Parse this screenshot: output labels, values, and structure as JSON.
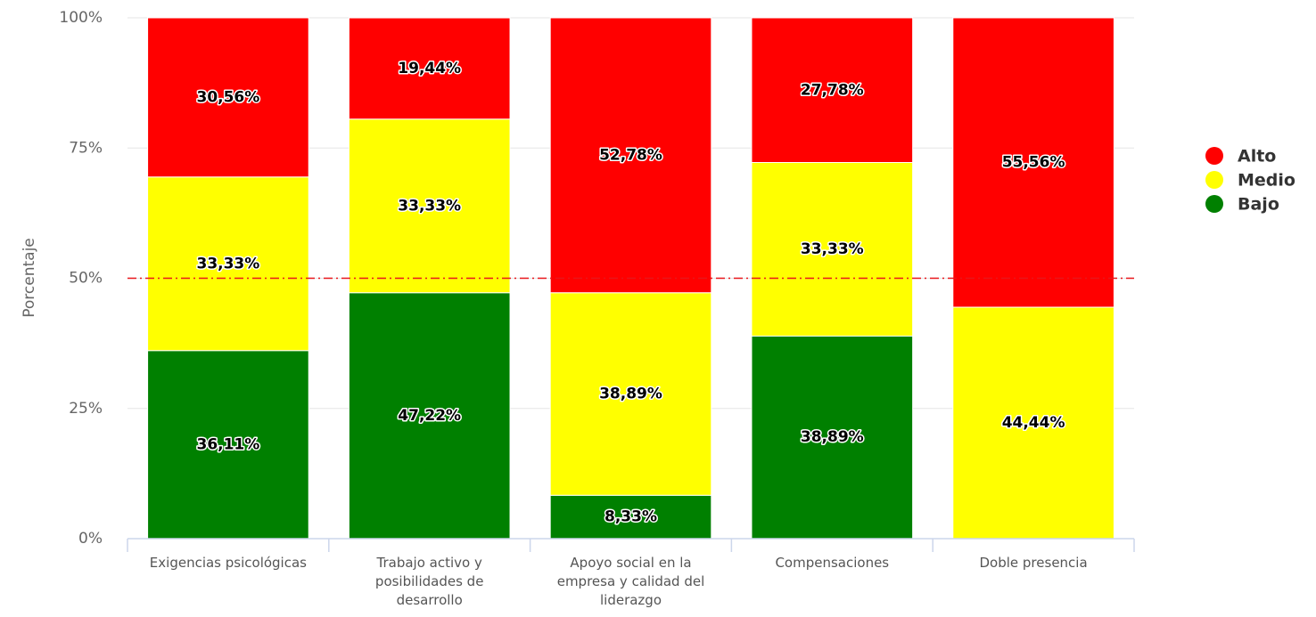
{
  "chart_data": {
    "type": "stacked_bar",
    "ylabel": "Porcentaje",
    "categories": [
      "Exigencias psicológicas",
      "Trabajo activo y posibilidades de desarrollo",
      "Apoyo social en la empresa y calidad del liderazgo",
      "Compensaciones",
      "Doble presencia"
    ],
    "series": [
      {
        "name": "Bajo",
        "color": "#008000",
        "values": [
          36.11,
          47.22,
          8.33,
          38.89,
          0
        ],
        "value_labels": [
          "36,11%",
          "47,22%",
          "8,33%",
          "38,89%",
          null
        ]
      },
      {
        "name": "Medio",
        "color": "#ffff00",
        "values": [
          33.33,
          33.33,
          38.89,
          33.33,
          44.44
        ],
        "value_labels": [
          "33,33%",
          "33,33%",
          "38,89%",
          "33,33%",
          "44,44%"
        ]
      },
      {
        "name": "Alto",
        "color": "#ff0000",
        "values": [
          30.56,
          19.44,
          52.78,
          27.78,
          55.56
        ],
        "value_labels": [
          "30,56%",
          "19,44%",
          "52,78%",
          "27,78%",
          "55,56%"
        ]
      }
    ],
    "ylim": [
      0,
      100
    ],
    "yticks": [
      {
        "value": 0,
        "label": "0%"
      },
      {
        "value": 25,
        "label": "25%"
      },
      {
        "value": 50,
        "label": "50%"
      },
      {
        "value": 75,
        "label": "75%"
      },
      {
        "value": 100,
        "label": "100%"
      }
    ],
    "grid": true,
    "reference_line": {
      "value": 50,
      "color": "#e8161b"
    },
    "legend_position": "right"
  }
}
